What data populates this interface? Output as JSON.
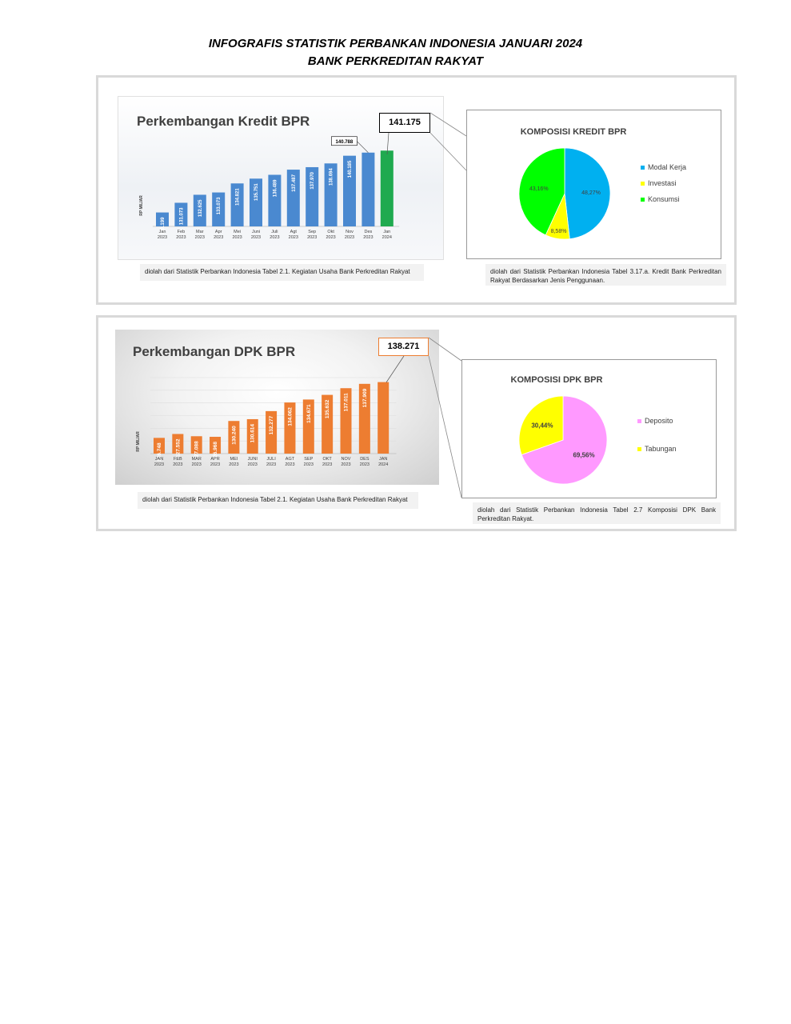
{
  "header": {
    "line1": "INFOGRAFIS STATISTIK PERBANKAN INDONESIA JANUARI 2024",
    "line2": "BANK PERKREDITAN RAKYAT"
  },
  "kredit": {
    "callout_value": "141.175",
    "note": "diolah dari Statistik Perbankan Indonesia Tabel 2.1. Kegiatan Usaha Bank Perkreditan Rakyat",
    "pie_note": "diolah dari Statistik Perbankan Indonesia Tabel 3.17.a. Kredit Bank Perkreditan Rakyat Berdasarkan Jenis Penggunaan."
  },
  "dpk": {
    "callout_value": "138.271",
    "note": "diolah dari Statistik Perbankan Indonesia Tabel 2.1. Kegiatan Usaha Bank Perkreditan Rakyat",
    "pie_note": "diolah dari Statistik Perbankan Indonesia Tabel 2.7 Komposisi DPK Bank Perkreditan Rakyat."
  },
  "chart_data": [
    {
      "id": "kredit-bar",
      "type": "bar",
      "title": "Perkembangan Kredit BPR",
      "ylabel": "RP MILIAR",
      "categories": [
        [
          "Jan",
          "2023"
        ],
        [
          "Feb",
          "2023"
        ],
        [
          "Mar",
          "2023"
        ],
        [
          "Apr",
          "2023"
        ],
        [
          "Mei",
          "2023"
        ],
        [
          "Juni",
          "2023"
        ],
        [
          "Juli",
          "2023"
        ],
        [
          "Agt",
          "2023"
        ],
        [
          "Sep",
          "2023"
        ],
        [
          "Okt",
          "2023"
        ],
        [
          "Nov",
          "2023"
        ],
        [
          "Des",
          "2023"
        ],
        [
          "Jan",
          "2024"
        ]
      ],
      "values": [
        129.199,
        131.073,
        132.625,
        133.073,
        134.821,
        135.751,
        136.489,
        137.487,
        137.97,
        138.694,
        140.185,
        140.788,
        141.175
      ],
      "labels": [
        "129.199",
        "131.073",
        "132.625",
        "133.073",
        "134.821",
        "135.751",
        "136.489",
        "137.487",
        "137.970",
        "138.694",
        "140.185",
        "",
        ""
      ],
      "top_label": "140.788",
      "ylim": [
        126.5,
        142.3
      ],
      "colors": {
        "bar": "#4a89d0",
        "highlight": "#1faa4f",
        "label": "#ffffff"
      }
    },
    {
      "id": "dpk-bar",
      "type": "bar",
      "title": "Perkembangan DPK BPR",
      "ylabel": "RP MILIAR",
      "categories": [
        [
          "JAN",
          "2023"
        ],
        [
          "FEB",
          "2023"
        ],
        [
          "MAR",
          "2023"
        ],
        [
          "APR",
          "2023"
        ],
        [
          "MEI",
          "2023"
        ],
        [
          "JUNI",
          "2023"
        ],
        [
          "JULI",
          "2023"
        ],
        [
          "AGT",
          "2023"
        ],
        [
          "SEP",
          "2023"
        ],
        [
          "OKT",
          "2023"
        ],
        [
          "NOV",
          "2023"
        ],
        [
          "DES",
          "2023"
        ],
        [
          "JAN",
          "2024"
        ]
      ],
      "values": [
        126.748,
        127.552,
        127.088,
        126.968,
        130.24,
        130.614,
        132.277,
        134.062,
        134.671,
        135.632,
        137.011,
        137.909,
        138.271
      ],
      "labels": [
        "126.748",
        "127.552",
        "127.088",
        "126.968",
        "130.240",
        "130.614",
        "132.277",
        "134.062",
        "134.671",
        "135.632",
        "137.011",
        "137.909",
        ""
      ],
      "ylim": [
        123.5,
        139.2
      ],
      "grid": true,
      "colors": {
        "bar": "#ed7d31",
        "label": "#ffffff"
      }
    },
    {
      "id": "kredit-pie",
      "type": "pie",
      "title": "KOMPOSISI KREDIT BPR",
      "slices": [
        {
          "name": "Modal Kerja",
          "value": 48.27,
          "label": "48,27%",
          "color": "#00b0f0"
        },
        {
          "name": "Investasi",
          "value": 8.58,
          "label": "8,58%",
          "color": "#ffff00"
        },
        {
          "name": "Konsumsi",
          "value": 43.16,
          "label": "43,16%",
          "color": "#00ff00"
        }
      ],
      "legend": "right"
    },
    {
      "id": "dpk-pie",
      "type": "pie",
      "title": "KOMPOSISI DPK BPR",
      "slices": [
        {
          "name": "Deposito",
          "value": 69.56,
          "label": "69,56%",
          "color": "#ff99ff"
        },
        {
          "name": "Tabungan",
          "value": 30.44,
          "label": "30,44%",
          "color": "#ffff00"
        }
      ],
      "legend": "right"
    }
  ]
}
